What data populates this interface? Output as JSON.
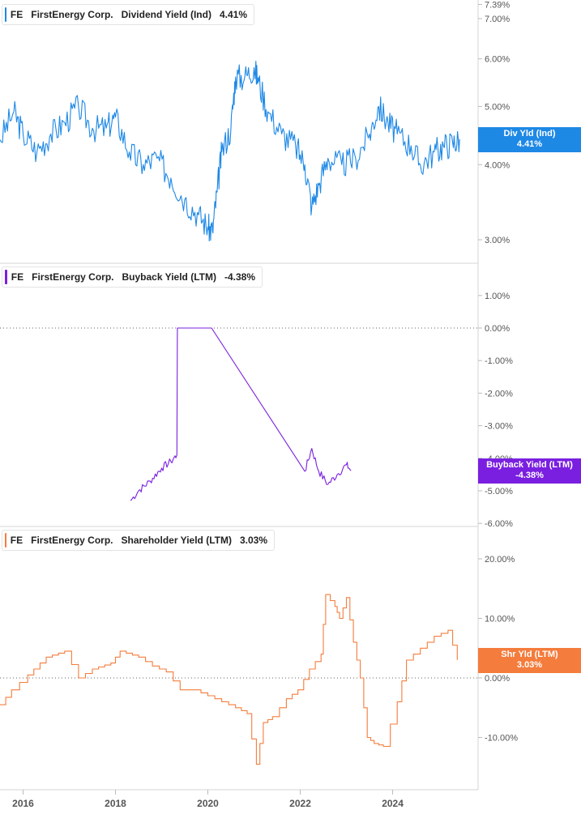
{
  "colors": {
    "dividend": "#1e88e5",
    "buyback": "#7a1fe0",
    "shareholder": "#f47c3c"
  },
  "x_axis": {
    "ticks": [
      "2016",
      "2018",
      "2020",
      "2022",
      "2024"
    ]
  },
  "panels": [
    {
      "ticker": "FE",
      "company": "FirstEnergy Corp.",
      "metric": "Dividend Yield (Ind)",
      "value": "4.41%",
      "tag_line1": "Div Yld (Ind)",
      "tag_line2": "4.41%",
      "axis_ticks": [
        "7.39%",
        "7.00%",
        "6.00%",
        "5.00%",
        "4.00%",
        "3.00%"
      ]
    },
    {
      "ticker": "FE",
      "company": "FirstEnergy Corp.",
      "metric": "Buyback Yield (LTM)",
      "value": "-4.38%",
      "tag_line1": "Buyback Yield (LTM)",
      "tag_line2": "-4.38%",
      "axis_ticks": [
        "1.00%",
        "0.00%",
        "-1.00%",
        "-2.00%",
        "-3.00%",
        "-4.00%",
        "-5.00%",
        "-6.00%"
      ]
    },
    {
      "ticker": "FE",
      "company": "FirstEnergy Corp.",
      "metric": "Shareholder Yield (LTM)",
      "value": "3.03%",
      "tag_line1": "Shr Yld (LTM)",
      "tag_line2": "3.03%",
      "axis_ticks": [
        "20.00%",
        "10.00%",
        "0.00%",
        "-10.00%"
      ]
    }
  ],
  "chart_data": [
    {
      "type": "line",
      "title": "Dividend Yield (Ind)",
      "series": [
        {
          "name": "FirstEnergy Corp.",
          "x": [
            2015.5,
            2015.8,
            2016.0,
            2016.3,
            2016.6,
            2016.9,
            2017.2,
            2017.5,
            2017.8,
            2018.0,
            2018.3,
            2018.6,
            2018.9,
            2019.2,
            2019.5,
            2019.8,
            2020.0,
            2020.1,
            2020.2,
            2020.3,
            2020.5,
            2020.6,
            2020.8,
            2021.0,
            2021.1,
            2021.3,
            2021.6,
            2021.9,
            2022.1,
            2022.25,
            2022.4,
            2022.6,
            2022.9,
            2023.2,
            2023.5,
            2023.7,
            2023.9,
            2024.1,
            2024.4,
            2024.6,
            2024.9,
            2025.1,
            2025.3,
            2025.45
          ],
          "values": [
            4.4,
            4.9,
            4.5,
            4.2,
            4.5,
            4.7,
            5.0,
            4.6,
            4.6,
            4.8,
            4.2,
            4.0,
            4.1,
            3.8,
            3.5,
            3.3,
            3.15,
            3.1,
            3.6,
            4.2,
            4.6,
            5.6,
            5.6,
            5.8,
            5.5,
            4.9,
            4.5,
            4.3,
            4.0,
            3.4,
            3.7,
            4.1,
            4.0,
            4.1,
            4.5,
            5.0,
            4.7,
            4.5,
            4.3,
            4.0,
            4.2,
            4.3,
            4.35,
            4.41
          ]
        }
      ],
      "scale": "log",
      "ylim": [
        2.9,
        7.39
      ]
    },
    {
      "type": "line",
      "title": "Buyback Yield (LTM)",
      "series": [
        {
          "name": "FirstEnergy Corp.",
          "x": [
            2018.33,
            2018.5,
            2018.75,
            2019.0,
            2019.2,
            2019.33,
            2019.34,
            2020.08,
            2022.1,
            2022.25,
            2022.4,
            2022.6,
            2022.8,
            2023.0,
            2023.1
          ],
          "values": [
            -5.3,
            -5.0,
            -4.7,
            -4.3,
            -4.1,
            -3.9,
            0.0,
            0.0,
            -4.4,
            -3.7,
            -4.4,
            -4.8,
            -4.5,
            -4.2,
            -4.38
          ]
        }
      ],
      "ylim": [
        -6.2,
        1.5
      ]
    },
    {
      "type": "line",
      "title": "Shareholder Yield (LTM)",
      "series": [
        {
          "name": "FirstEnergy Corp.",
          "x": [
            2015.5,
            2015.75,
            2016.1,
            2016.5,
            2016.9,
            2017.2,
            2017.5,
            2017.9,
            2018.1,
            2018.5,
            2018.8,
            2019.1,
            2019.4,
            2019.7,
            2020.0,
            2020.3,
            2020.6,
            2020.85,
            2021.05,
            2021.2,
            2021.4,
            2021.7,
            2021.95,
            2022.2,
            2022.45,
            2022.55,
            2022.75,
            2022.85,
            2023.0,
            2023.15,
            2023.3,
            2023.45,
            2023.6,
            2023.8,
            2024.1,
            2024.3,
            2024.6,
            2024.9,
            2025.2,
            2025.4
          ],
          "values": [
            -4.5,
            -2.0,
            0.5,
            3.5,
            4.5,
            0.0,
            1.5,
            2.5,
            4.5,
            3.5,
            2.0,
            1.0,
            -2.0,
            -2.0,
            -3.0,
            -4.0,
            -5.0,
            -6.0,
            -14.5,
            -7.5,
            -6.5,
            -3.5,
            -2.0,
            1.5,
            4.0,
            14.0,
            12.0,
            10.0,
            13.5,
            6.0,
            0.0,
            -10.0,
            -11.0,
            -11.5,
            -4.0,
            3.0,
            5.0,
            7.0,
            8.0,
            3.03
          ]
        }
      ],
      "ylim": [
        -17,
        23
      ]
    }
  ]
}
